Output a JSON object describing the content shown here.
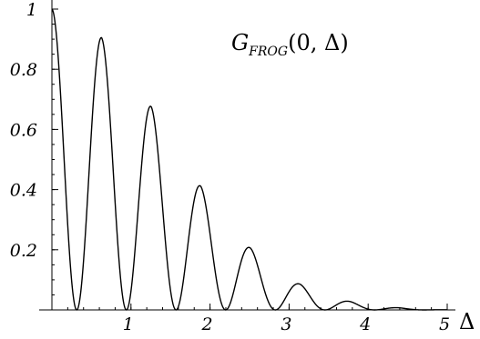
{
  "chart_data": {
    "type": "line",
    "annotation": {
      "func": "G",
      "subscript": "FROG",
      "args_open": "(0, ",
      "delta": "Δ",
      "args_close": ")"
    },
    "xlabel": "Δ",
    "ylabel": "",
    "xlim": [
      0,
      5
    ],
    "ylim": [
      0,
      1
    ],
    "x_ticks": [
      1,
      2,
      3,
      4,
      5
    ],
    "x_tick_labels": [
      "1",
      "2",
      "3",
      "4",
      "5"
    ],
    "y_ticks": [
      0.2,
      0.4,
      0.6,
      0.8,
      1
    ],
    "y_tick_labels": [
      "0.2",
      "0.4",
      "0.6",
      "0.8",
      "1"
    ],
    "grid": false,
    "curve_color": "#000000",
    "series": [
      {
        "x": [
          0,
          0.314,
          0.628,
          0.942,
          1.257,
          1.571,
          1.885,
          2.199,
          2.513,
          2.827,
          3.142,
          3.456,
          3.77,
          4.084,
          4.398,
          4.712
        ],
        "y": [
          1.0,
          0.0,
          0.905,
          0.0,
          0.675,
          0.0,
          0.41,
          0.0,
          0.205,
          0.0,
          0.085,
          0.0,
          0.028,
          0.0,
          0.007,
          0.0
        ]
      }
    ]
  }
}
